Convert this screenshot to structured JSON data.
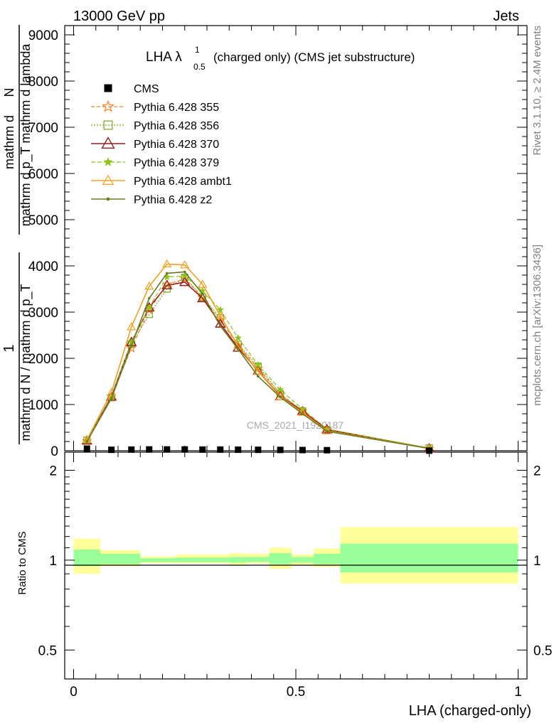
{
  "header": {
    "left": "13000 GeV pp",
    "right": "Jets",
    "side_top": "Rivet 3.1.10, ≥ 2.4M events",
    "side_bottom": "mcplots.cern.ch [arXiv:1306.3436]"
  },
  "plot_title": {
    "main": "LHA λ",
    "sup": "1",
    "sub": "0.5",
    "rest": "(charged only) (CMS jet substructure)"
  },
  "watermark": "CMS_2021_I1920187",
  "y_label": {
    "frac_one": "1",
    "frac_den": "mathrm d N / mathrm d p_T",
    "num_top": "mathrm d",
    "num_n": "N",
    "num_rest": "mathrm d p_T mathrm d lambda"
  },
  "ratio_ylabel": "Ratio to CMS",
  "xlabel": "LHA (charged-only)",
  "colors": {
    "green_band": "#99ff99",
    "yellow_band": "#ffff99",
    "p355": "#ff7f27",
    "p356": "#7fa31c",
    "p370": "#9b1b1b",
    "p379": "#8ec21b",
    "ambt1": "#f0a020",
    "z2": "#6b7a1f"
  },
  "chart_data": {
    "type": "line",
    "xlim": [
      -0.02,
      1.02
    ],
    "main_ylim": [
      0,
      9200
    ],
    "main_yticks": [
      0,
      1000,
      2000,
      3000,
      4000,
      5000,
      6000,
      7000,
      8000,
      9000
    ],
    "main_yticklabels": [
      "0",
      "1000",
      "2000",
      "3000",
      "4000",
      "5000",
      "6000",
      "7000",
      "8000",
      "9000"
    ],
    "ratio_ylim": [
      0.4,
      2.3
    ],
    "ratio_ytick_labels": [
      {
        "v": 0.5,
        "t": "0.5"
      },
      {
        "v": 1,
        "t": "1"
      },
      {
        "v": 2,
        "t": "2"
      }
    ],
    "xtick_labels": [
      {
        "v": 0,
        "t": "0"
      },
      {
        "v": 0.5,
        "t": "0.5"
      },
      {
        "v": 1,
        "t": "1"
      }
    ],
    "legend": [
      {
        "key": "cms",
        "label": "CMS"
      },
      {
        "key": "p355",
        "label": "Pythia 6.428 355"
      },
      {
        "key": "p356",
        "label": "Pythia 6.428 356"
      },
      {
        "key": "p370",
        "label": "Pythia 6.428 370"
      },
      {
        "key": "p379",
        "label": "Pythia 6.428 379"
      },
      {
        "key": "ambt1",
        "label": "Pythia 6.428 ambt1"
      },
      {
        "key": "z2",
        "label": "Pythia 6.428 z2"
      }
    ],
    "x": [
      0.03,
      0.085,
      0.13,
      0.17,
      0.21,
      0.25,
      0.29,
      0.33,
      0.37,
      0.415,
      0.465,
      0.515,
      0.57,
      0.8
    ],
    "cms": [
      45,
      20,
      25,
      28,
      28,
      28,
      25,
      25,
      22,
      20,
      18,
      15,
      12,
      2
    ],
    "series": [
      {
        "key": "p355",
        "name": "Pythia 6.428 355",
        "values": [
          210,
          1180,
          2220,
          3050,
          3600,
          3720,
          3320,
          2820,
          2280,
          1780,
          1230,
          860,
          470,
          50
        ]
      },
      {
        "key": "p356",
        "name": "Pythia 6.428 356",
        "values": [
          230,
          1150,
          2310,
          2950,
          3500,
          3750,
          3320,
          2880,
          2300,
          1830,
          1230,
          860,
          450,
          60
        ]
      },
      {
        "key": "p370",
        "name": "Pythia 6.428 370",
        "values": [
          220,
          1170,
          2350,
          3100,
          3580,
          3650,
          3300,
          2750,
          2230,
          1730,
          1180,
          860,
          460,
          50
        ]
      },
      {
        "key": "p379",
        "name": "Pythia 6.428 379",
        "values": [
          220,
          1150,
          2350,
          3100,
          3760,
          3780,
          3460,
          3050,
          2440,
          1860,
          1320,
          900,
          470,
          60
        ]
      },
      {
        "key": "ambt1",
        "name": "Pythia 6.428 ambt1",
        "values": [
          240,
          1260,
          2680,
          3560,
          4040,
          4020,
          3600,
          2920,
          2270,
          1720,
          1170,
          830,
          430,
          50
        ]
      },
      {
        "key": "z2",
        "name": "Pythia 6.428 z2",
        "values": [
          200,
          1130,
          2280,
          3300,
          3840,
          3870,
          3390,
          2700,
          2200,
          1610,
          1160,
          800,
          420,
          50
        ]
      }
    ],
    "bins": [
      {
        "x0": 0.0,
        "x1": 0.06,
        "g": [
          0.955,
          1.085
        ],
        "y": [
          0.9,
          1.18
        ]
      },
      {
        "x0": 0.06,
        "x1": 0.15,
        "g": [
          0.97,
          1.05
        ],
        "y": [
          0.955,
          1.08
        ]
      },
      {
        "x0": 0.15,
        "x1": 0.23,
        "g": [
          0.985,
          1.015
        ],
        "y": [
          0.975,
          1.03
        ]
      },
      {
        "x0": 0.23,
        "x1": 0.35,
        "g": [
          0.985,
          1.02
        ],
        "y": [
          0.975,
          1.045
        ]
      },
      {
        "x0": 0.35,
        "x1": 0.39,
        "g": [
          0.98,
          1.025
        ],
        "y": [
          0.96,
          1.055
        ]
      },
      {
        "x0": 0.39,
        "x1": 0.44,
        "g": [
          0.985,
          1.025
        ],
        "y": [
          0.975,
          1.05
        ]
      },
      {
        "x0": 0.44,
        "x1": 0.49,
        "g": [
          0.97,
          1.055
        ],
        "y": [
          0.935,
          1.1
        ]
      },
      {
        "x0": 0.49,
        "x1": 0.54,
        "g": [
          0.98,
          1.025
        ],
        "y": [
          0.965,
          1.045
        ]
      },
      {
        "x0": 0.54,
        "x1": 0.6,
        "g": [
          0.97,
          1.05
        ],
        "y": [
          0.95,
          1.095
        ]
      },
      {
        "x0": 0.6,
        "x1": 1.0,
        "g": [
          0.91,
          1.135
        ],
        "y": [
          0.835,
          1.29
        ]
      }
    ]
  }
}
